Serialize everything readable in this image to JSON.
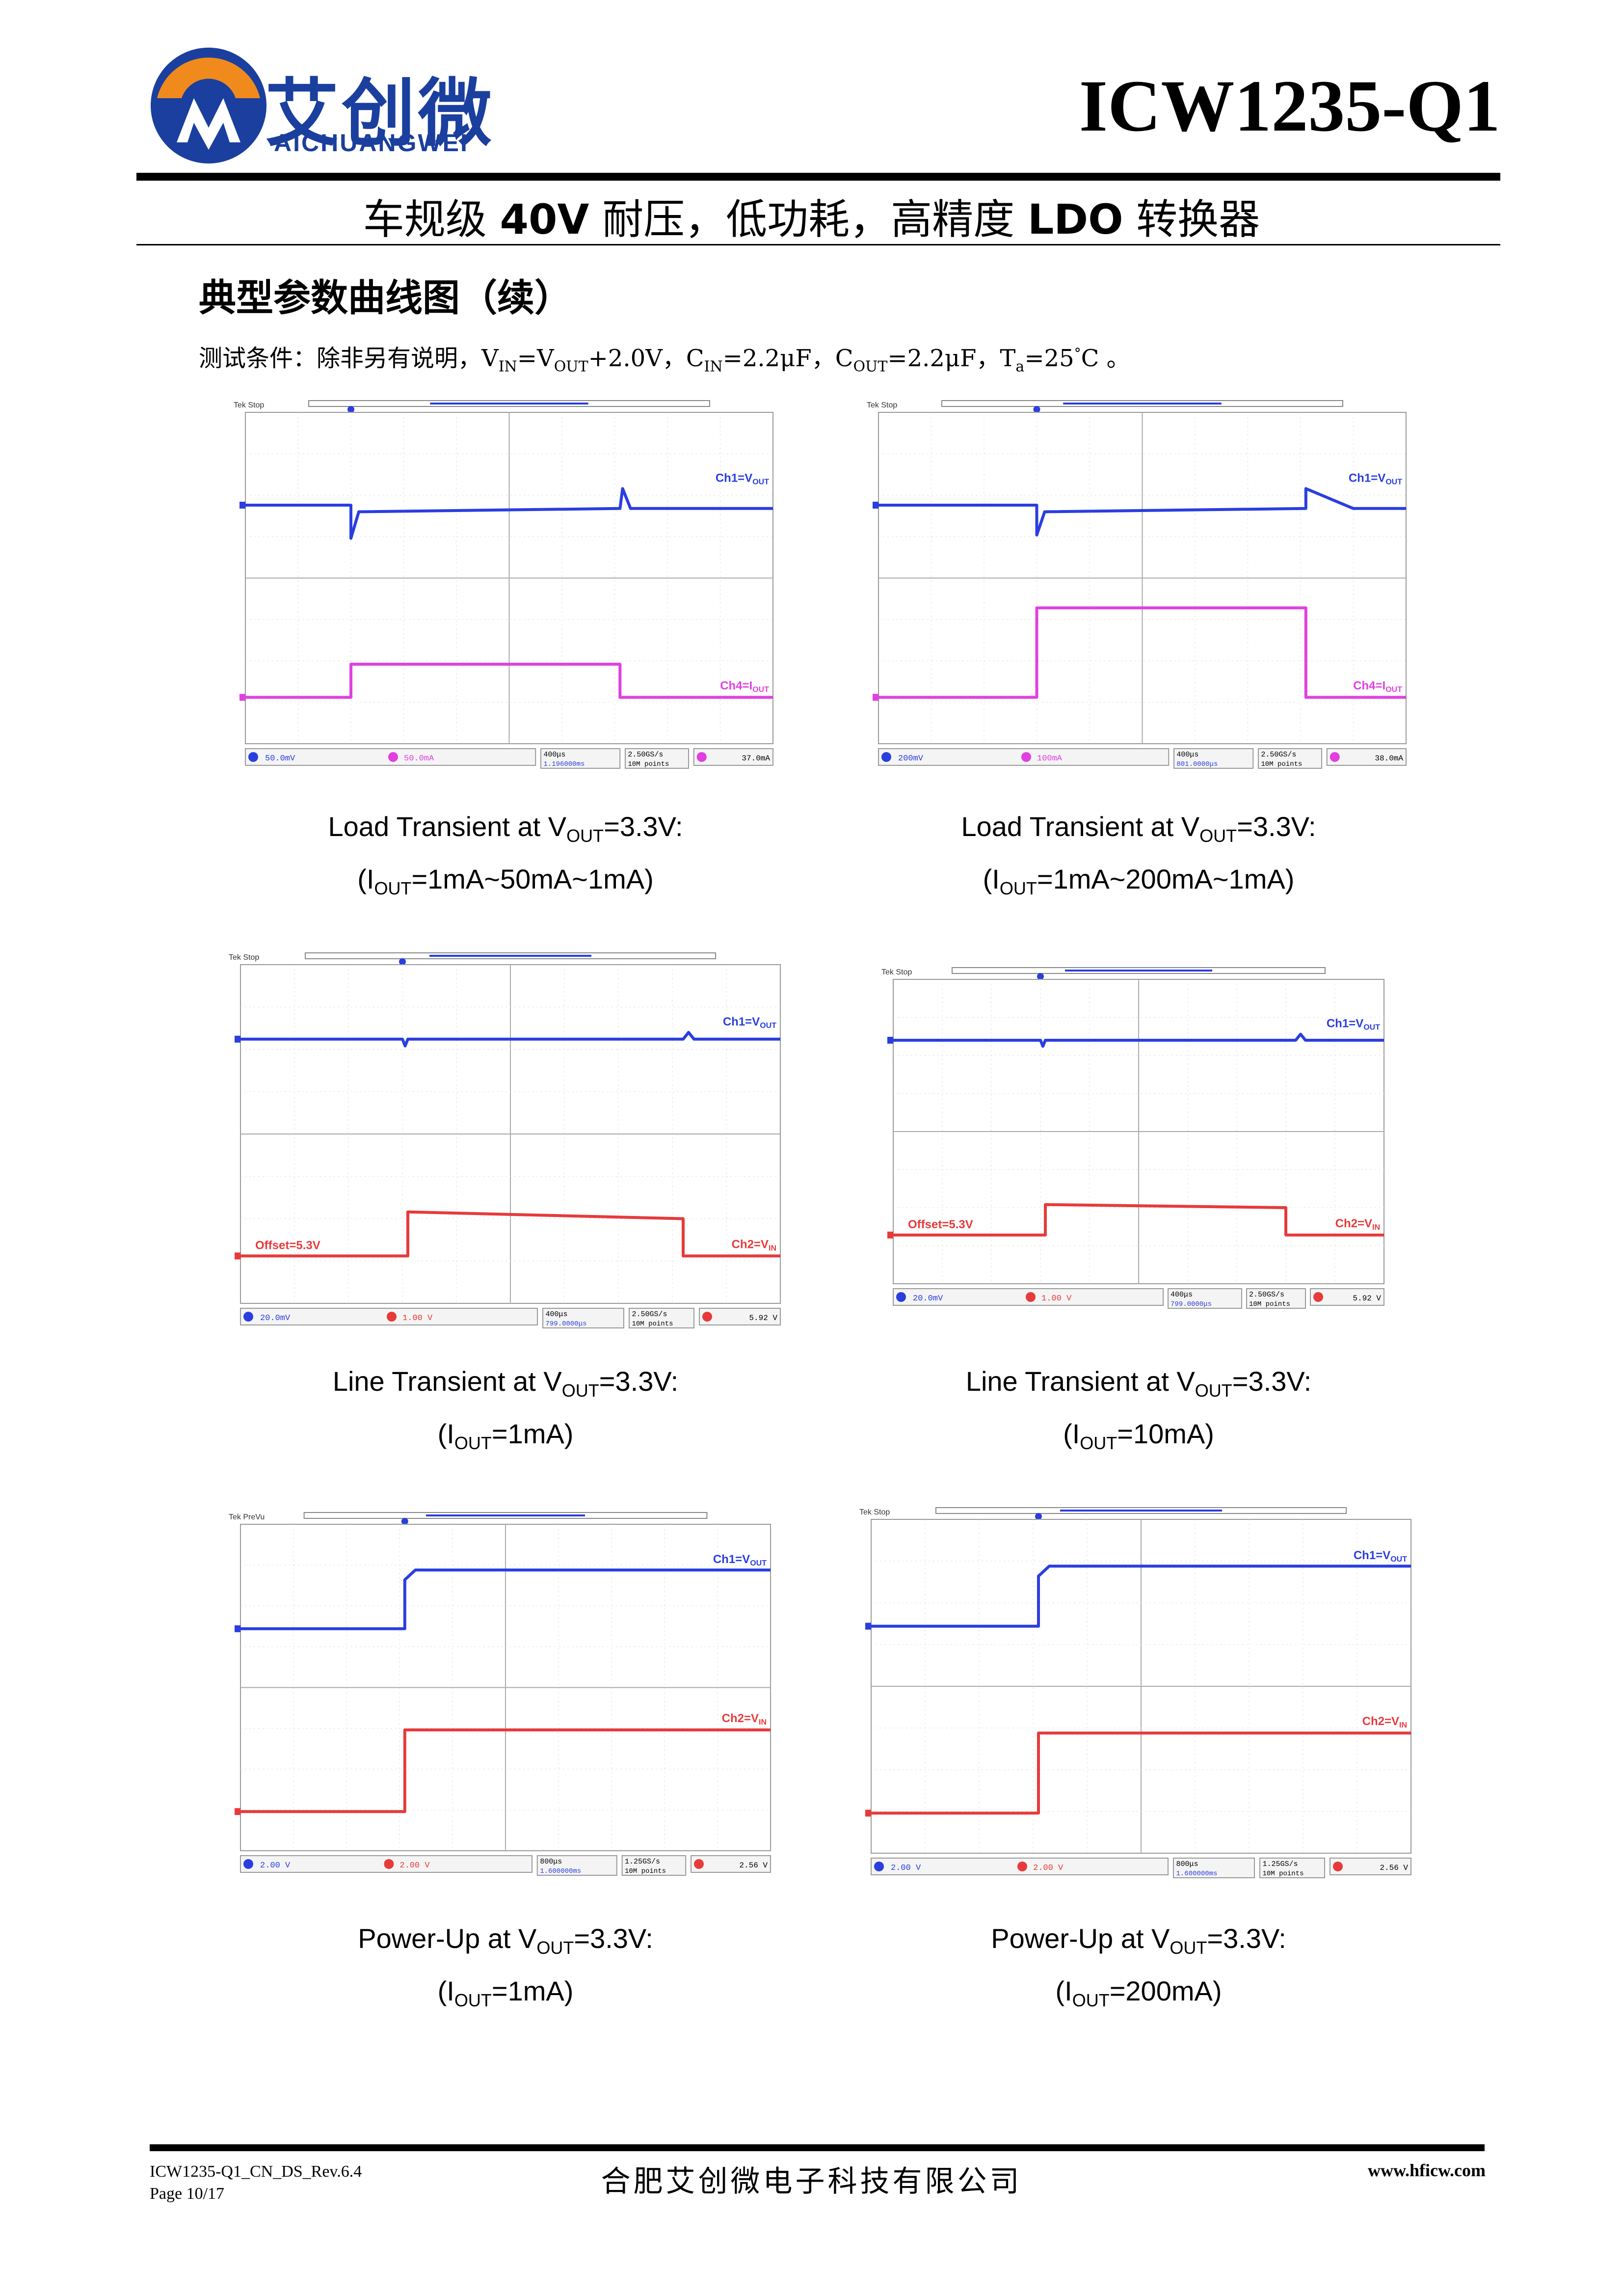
{
  "header": {
    "logo_cn": "艾创微",
    "logo_en": "AICHUANGWEI",
    "part_number": "ICW1235-Q1",
    "subtitle_parts": [
      "车规级 ",
      "40V",
      " 耐压，低功耗，高精度 ",
      "LDO",
      " 转换器"
    ]
  },
  "section_title": "典型参数曲线图（续）",
  "test_conditions": {
    "prefix": "测试条件：除非另有说明，",
    "vin": "V",
    "vin_sub": "IN",
    "eq1": "=V",
    "vout_sub": "OUT",
    "rest1": "+2.0V，",
    "cin": "C",
    "cin_sub": "IN",
    "rest2": "=2.2μF，",
    "cout": "C",
    "cout_sub": "OUT",
    "rest3": "=2.2μF，",
    "ta": "T",
    "ta_sub": "a",
    "rest4": "=25",
    "deg": "°",
    "rest5": "C 。"
  },
  "panels": [
    {
      "status": "Tek Stop",
      "ch_top": "Ch1=V",
      "ch_top_sub": "OUT",
      "ch_bot": "Ch4=I",
      "ch_bot_sub": "OUT",
      "bot_color": "#e040e0",
      "offset": "",
      "readout_1": "50.0mV",
      "readout_2": "50.0mA",
      "readout_time": "400μs",
      "readout_delay": "1.196000ms",
      "readout_rate": "2.50GS/s",
      "readout_points": "10M points",
      "readout_trig": "37.0mA",
      "caption_1a": "Load Transient at V",
      "caption_1b": "OUT",
      "caption_1c": "=3.3V:",
      "caption_2a": "(I",
      "caption_2b": "OUT",
      "caption_2c": "=1mA~50mA~1mA)"
    },
    {
      "status": "Tek Stop",
      "ch_top": "Ch1=V",
      "ch_top_sub": "OUT",
      "ch_bot": "Ch4=I",
      "ch_bot_sub": "OUT",
      "bot_color": "#e040e0",
      "offset": "",
      "readout_1": "200mV",
      "readout_2": "100mA",
      "readout_time": "400μs",
      "readout_delay": "801.0000μs",
      "readout_rate": "2.50GS/s",
      "readout_points": "10M points",
      "readout_trig": "38.0mA",
      "caption_1a": "Load Transient at V",
      "caption_1b": "OUT",
      "caption_1c": "=3.3V:",
      "caption_2a": "(I",
      "caption_2b": "OUT",
      "caption_2c": "=1mA~200mA~1mA)"
    },
    {
      "status": "Tek Stop",
      "ch_top": "Ch1=V",
      "ch_top_sub": "OUT",
      "ch_bot": "Ch2=V",
      "ch_bot_sub": "IN",
      "bot_color": "#e83a3a",
      "offset": "Offset=5.3V",
      "readout_1": "20.0mV",
      "readout_2": "1.00 V",
      "readout_time": "400μs",
      "readout_delay": "799.0000μs",
      "readout_rate": "2.50GS/s",
      "readout_points": "10M points",
      "readout_trig": "5.92 V",
      "caption_1a": "Line Transient at V",
      "caption_1b": "OUT",
      "caption_1c": "=3.3V:",
      "caption_2a": "(I",
      "caption_2b": "OUT",
      "caption_2c": "=1mA)"
    },
    {
      "status": "Tek Stop",
      "ch_top": "Ch1=V",
      "ch_top_sub": "OUT",
      "ch_bot": "Ch2=V",
      "ch_bot_sub": "IN",
      "bot_color": "#e83a3a",
      "offset": "Offset=5.3V",
      "readout_1": "20.0mV",
      "readout_2": "1.00 V",
      "readout_time": "400μs",
      "readout_delay": "799.0000μs",
      "readout_rate": "2.50GS/s",
      "readout_points": "10M points",
      "readout_trig": "5.92 V",
      "caption_1a": "Line Transient at V",
      "caption_1b": "OUT",
      "caption_1c": "=3.3V:",
      "caption_2a": "(I",
      "caption_2b": "OUT",
      "caption_2c": "=10mA)"
    },
    {
      "status": "Tek PreVu",
      "ch_top": "Ch1=V",
      "ch_top_sub": "OUT",
      "ch_bot": "Ch2=V",
      "ch_bot_sub": "IN",
      "bot_color": "#e83a3a",
      "offset": "",
      "readout_1": "2.00 V",
      "readout_2": "2.00 V",
      "readout_time": "800μs",
      "readout_delay": "1.600000ms",
      "readout_rate": "1.25GS/s",
      "readout_points": "10M points",
      "readout_trig": "2.56 V",
      "caption_1a": "Power-Up at V",
      "caption_1b": "OUT",
      "caption_1c": "=3.3V:",
      "caption_2a": "(I",
      "caption_2b": "OUT",
      "caption_2c": "=1mA)"
    },
    {
      "status": "Tek Stop",
      "ch_top": "Ch1=V",
      "ch_top_sub": "OUT",
      "ch_bot": "Ch2=V",
      "ch_bot_sub": "IN",
      "bot_color": "#e83a3a",
      "offset": "",
      "readout_1": "2.00 V",
      "readout_2": "2.00 V",
      "readout_time": "800μs",
      "readout_delay": "1.600000ms",
      "readout_rate": "1.25GS/s",
      "readout_points": "10M points",
      "readout_trig": "2.56 V",
      "caption_1a": "Power-Up at V",
      "caption_1b": "OUT",
      "caption_1c": "=3.3V:",
      "caption_2a": "(I",
      "caption_2b": "OUT",
      "caption_2c": "=200mA)"
    }
  ],
  "footer": {
    "doc_id": "ICW1235-Q1_CN_DS_Rev.6.4",
    "page": "Page 10/17",
    "company": "合肥艾创微电子科技有限公司",
    "website": "www.hficw.com"
  },
  "colors": {
    "brand_blue": "#1b3f9e",
    "logo_orange": "#f08a1c",
    "trace_blue": "#2a3ee0"
  }
}
